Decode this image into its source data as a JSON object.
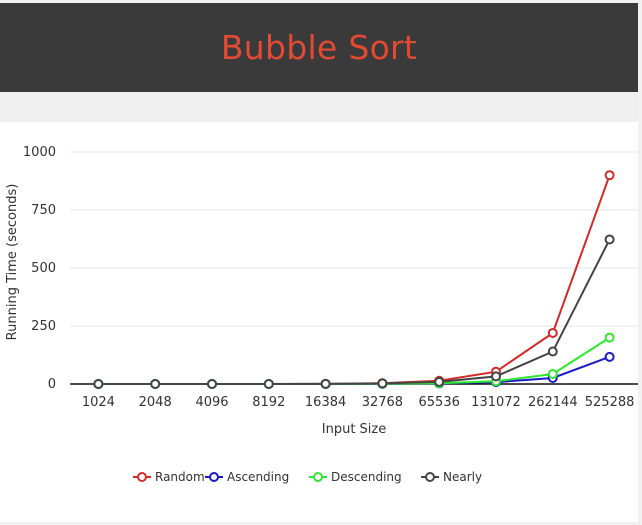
{
  "header": {
    "title": "Bubble Sort"
  },
  "colors": {
    "header_bg": "#3a3a3a",
    "title": "#e24a34",
    "Random": "#d42a2a",
    "Ascending": "#1a1ac8",
    "Descending": "#2ee82e",
    "Nearly": "#444444"
  },
  "chart_data": {
    "type": "line",
    "title": "",
    "xlabel": "Input Size",
    "ylabel": "Running Time (seconds)",
    "categories": [
      "1024",
      "2048",
      "4096",
      "8192",
      "16384",
      "32768",
      "65536",
      "131072",
      "262144",
      "525288"
    ],
    "ylim": [
      0,
      1000
    ],
    "yticks": [
      "0",
      "250",
      "500",
      "750",
      "1000"
    ],
    "grid": true,
    "legend_position": "bottom",
    "series": [
      {
        "name": "Random",
        "values": [
          0,
          0,
          0,
          0.1,
          0.8,
          3.5,
          14,
          53,
          220,
          900
        ]
      },
      {
        "name": "Ascending",
        "values": [
          0,
          0,
          0,
          0,
          0.2,
          0.8,
          2.5,
          8,
          26,
          117
        ]
      },
      {
        "name": "Descending",
        "values": [
          0,
          0,
          0,
          0,
          0.3,
          1,
          3.5,
          12,
          43,
          200
        ]
      },
      {
        "name": "Nearly",
        "values": [
          0,
          0,
          0,
          0.1,
          0.5,
          2.5,
          9,
          33,
          140,
          623
        ]
      }
    ]
  }
}
